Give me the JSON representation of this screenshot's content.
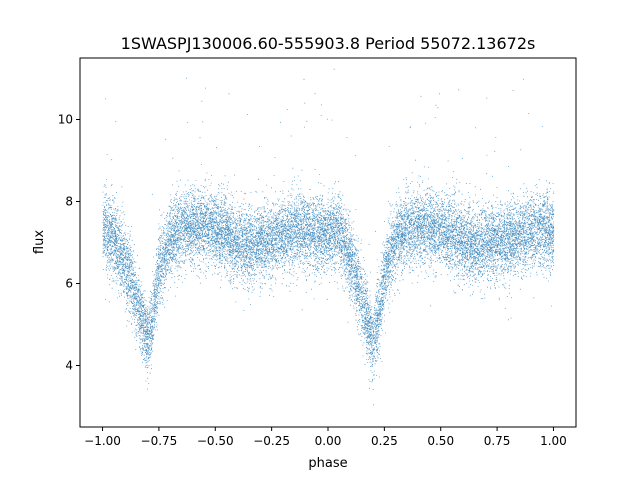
{
  "chart_data": {
    "type": "scatter",
    "title": "1SWASPJ130006.60-555903.8 Period 55072.13672s",
    "xlabel": "phase",
    "ylabel": "flux",
    "xlim": [
      -1.1,
      1.1
    ],
    "ylim": [
      2.5,
      11.5
    ],
    "x_ticks": [
      -1.0,
      -0.75,
      -0.5,
      -0.25,
      0.0,
      0.25,
      0.5,
      0.75,
      1.0
    ],
    "x_tick_labels": [
      "−1.00",
      "−0.75",
      "−0.50",
      "−0.25",
      "0.00",
      "0.25",
      "0.50",
      "0.75",
      "1.00"
    ],
    "y_ticks": [
      4,
      6,
      8,
      10
    ],
    "y_tick_labels": [
      "4",
      "6",
      "8",
      "10"
    ],
    "grid": false,
    "legend": "none",
    "marker_color": "#1f77b4",
    "light_curve": {
      "phase": [
        -1.0,
        -0.95,
        -0.9,
        -0.85,
        -0.82,
        -0.8,
        -0.78,
        -0.75,
        -0.7,
        -0.65,
        -0.6,
        -0.55,
        -0.5,
        -0.45,
        -0.4,
        -0.35,
        -0.3,
        -0.25,
        -0.2,
        -0.15,
        -0.1,
        -0.05,
        0.0,
        0.05,
        0.1,
        0.15,
        0.18,
        0.2,
        0.22,
        0.25,
        0.3,
        0.35,
        0.4,
        0.45,
        0.5,
        0.55,
        0.6,
        0.65,
        0.7,
        0.75,
        0.8,
        0.85,
        0.9,
        0.95,
        1.0
      ],
      "median_flux": [
        7.3,
        7.1,
        6.5,
        5.6,
        5.0,
        4.6,
        5.1,
        6.4,
        7.1,
        7.3,
        7.4,
        7.4,
        7.3,
        7.2,
        7.0,
        6.9,
        7.0,
        7.1,
        7.2,
        7.3,
        7.3,
        7.2,
        7.2,
        7.2,
        6.6,
        5.6,
        5.0,
        4.6,
        5.1,
        6.3,
        7.1,
        7.3,
        7.4,
        7.4,
        7.3,
        7.2,
        7.0,
        6.9,
        7.0,
        7.0,
        7.1,
        7.2,
        7.3,
        7.3,
        7.3
      ],
      "scatter_sd": 0.45,
      "n_points": 18000
    }
  }
}
